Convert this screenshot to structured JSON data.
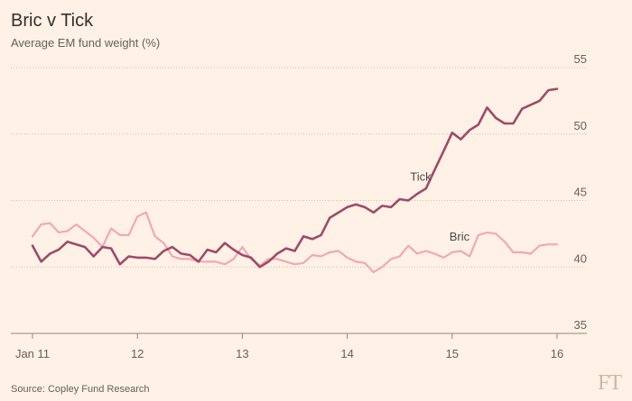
{
  "chart_data": {
    "type": "line",
    "title": "Bric v Tick",
    "subtitle": "Average EM fund weight (%)",
    "source": "Source: Copley Fund Research",
    "logo": "FT",
    "xlabel": "",
    "ylabel": "",
    "x_ticks": [
      "Jan 11",
      "12",
      "13",
      "14",
      "15",
      "16"
    ],
    "x_tick_values": [
      2011,
      2012,
      2013,
      2014,
      2015,
      2016
    ],
    "xlim": [
      2010.85,
      2016.1
    ],
    "ylim": [
      35,
      55
    ],
    "y_ticks": [
      35,
      40,
      45,
      50,
      55
    ],
    "grid": "horizontal dotted",
    "legend": "inline labels",
    "series": [
      {
        "name": "Tick",
        "color": "#9e4a6b",
        "x": [
          2011.0,
          2011.083,
          2011.167,
          2011.25,
          2011.333,
          2011.417,
          2011.5,
          2011.583,
          2011.667,
          2011.75,
          2011.833,
          2011.917,
          2012.0,
          2012.083,
          2012.167,
          2012.25,
          2012.333,
          2012.417,
          2012.5,
          2012.583,
          2012.667,
          2012.75,
          2012.833,
          2012.917,
          2013.0,
          2013.083,
          2013.167,
          2013.25,
          2013.333,
          2013.417,
          2013.5,
          2013.583,
          2013.667,
          2013.75,
          2013.833,
          2013.917,
          2014.0,
          2014.083,
          2014.167,
          2014.25,
          2014.333,
          2014.417,
          2014.5,
          2014.583,
          2014.667,
          2014.75,
          2014.833,
          2014.917,
          2015.0,
          2015.083,
          2015.167,
          2015.25,
          2015.333,
          2015.417,
          2015.5,
          2015.583,
          2015.667,
          2015.75,
          2015.833,
          2015.917,
          2016.0
        ],
        "values": [
          41.6,
          40.4,
          41.0,
          41.3,
          41.9,
          41.7,
          41.5,
          40.8,
          41.5,
          41.4,
          40.2,
          40.8,
          40.7,
          40.7,
          40.6,
          41.2,
          41.5,
          41.0,
          40.9,
          40.4,
          41.3,
          41.1,
          41.8,
          41.3,
          40.9,
          40.7,
          40.0,
          40.4,
          41.0,
          41.4,
          41.2,
          42.3,
          42.1,
          42.4,
          43.7,
          44.1,
          44.5,
          44.7,
          44.5,
          44.1,
          44.6,
          44.5,
          45.1,
          45.0,
          45.5,
          45.9,
          47.3,
          48.7,
          50.1,
          49.6,
          50.3,
          50.7,
          52.0,
          51.2,
          50.8,
          50.8,
          51.9,
          52.2,
          52.5,
          53.3,
          53.4
        ]
      },
      {
        "name": "Bric",
        "color": "#f2a8b2",
        "x": [
          2011.0,
          2011.083,
          2011.167,
          2011.25,
          2011.333,
          2011.417,
          2011.5,
          2011.583,
          2011.667,
          2011.75,
          2011.833,
          2011.917,
          2012.0,
          2012.083,
          2012.167,
          2012.25,
          2012.333,
          2012.417,
          2012.5,
          2012.583,
          2012.667,
          2012.75,
          2012.833,
          2012.917,
          2013.0,
          2013.083,
          2013.167,
          2013.25,
          2013.333,
          2013.417,
          2013.5,
          2013.583,
          2013.667,
          2013.75,
          2013.833,
          2013.917,
          2014.0,
          2014.083,
          2014.167,
          2014.25,
          2014.333,
          2014.417,
          2014.5,
          2014.583,
          2014.667,
          2014.75,
          2014.833,
          2014.917,
          2015.0,
          2015.083,
          2015.167,
          2015.25,
          2015.333,
          2015.417,
          2015.5,
          2015.583,
          2015.667,
          2015.75,
          2015.833,
          2015.917,
          2016.0
        ],
        "values": [
          42.3,
          43.2,
          43.3,
          42.6,
          42.7,
          43.2,
          42.7,
          42.2,
          41.5,
          42.9,
          42.4,
          42.4,
          43.8,
          44.1,
          42.3,
          41.8,
          40.8,
          40.6,
          40.6,
          40.4,
          40.4,
          40.4,
          40.2,
          40.6,
          41.5,
          40.6,
          40.1,
          40.6,
          40.6,
          40.4,
          40.2,
          40.3,
          40.9,
          40.8,
          41.1,
          41.2,
          40.7,
          40.4,
          40.3,
          39.6,
          40.0,
          40.6,
          40.8,
          41.6,
          41.0,
          41.2,
          41.0,
          40.7,
          41.1,
          41.2,
          40.8,
          42.4,
          42.6,
          42.5,
          41.9,
          41.1,
          41.1,
          41.0,
          41.6,
          41.7,
          41.7
        ]
      }
    ],
    "annotations": [
      {
        "text": "Tick",
        "x": 2014.7,
        "y": 46.5
      },
      {
        "text": "Bric",
        "x": 2015.07,
        "y": 42.0
      }
    ]
  }
}
